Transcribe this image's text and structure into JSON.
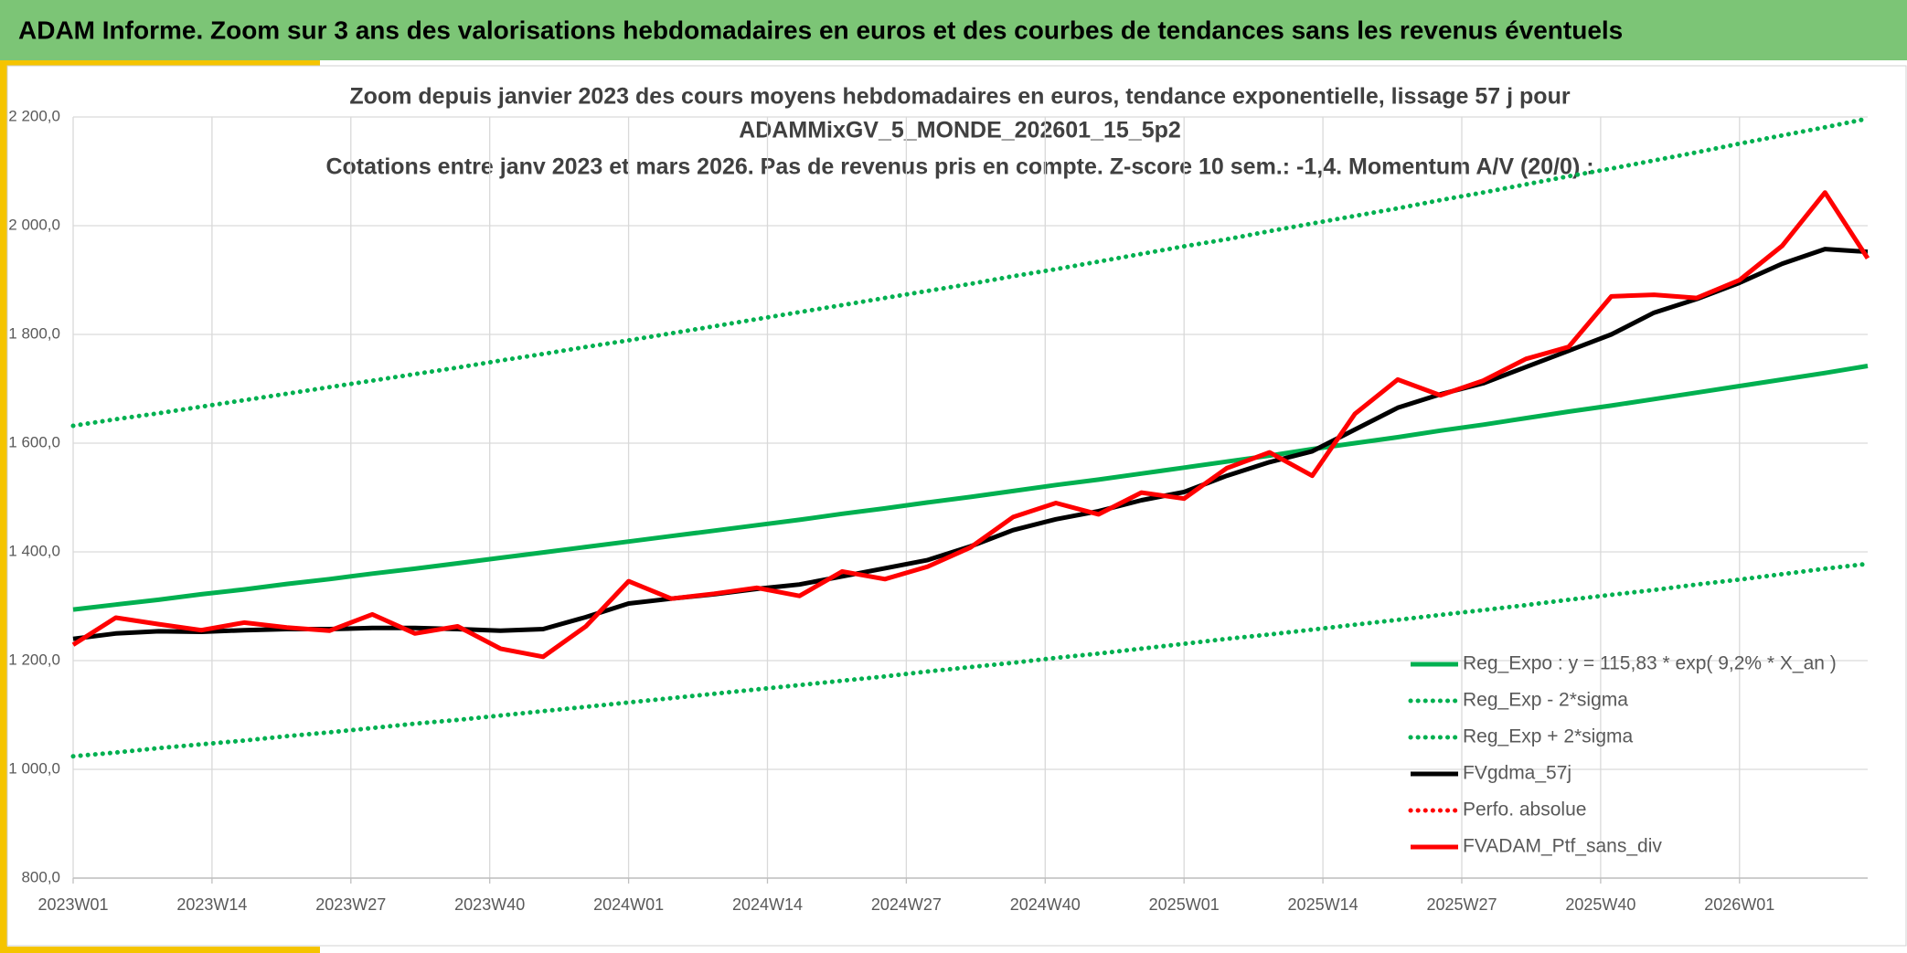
{
  "header": {
    "title": "ADAM Informe. Zoom sur 3 ans des valorisations hebdomadaires en euros et des courbes de tendances sans les revenus éventuels"
  },
  "chart_data": {
    "type": "line",
    "title": [
      "Zoom depuis janvier 2023 des cours moyens hebdomadaires en euros, tendance exponentielle, lissage 57 j pour",
      "ADAMMixGV_5_MONDE_202601_15_5p2"
    ],
    "subtitle": "Cotations entre janv 2023 et mars 2026. Pas de revenus pris en compte. Z-score 10 sem.: -1,4. Momentum A/V (20/0) :",
    "x": [
      0,
      4,
      8,
      12,
      16,
      20,
      24,
      28,
      32,
      36,
      40,
      44,
      48,
      52,
      56,
      60,
      64,
      68,
      72,
      76,
      80,
      84,
      88,
      92,
      96,
      100,
      104,
      108,
      112,
      116,
      120,
      124,
      128,
      132,
      136,
      140,
      144,
      148,
      152,
      156,
      160,
      164,
      168
    ],
    "xlim": [
      0,
      168
    ],
    "xticks": [
      {
        "value": 0,
        "label": "2023W01"
      },
      {
        "value": 13,
        "label": "2023W14"
      },
      {
        "value": 26,
        "label": "2023W27"
      },
      {
        "value": 39,
        "label": "2023W40"
      },
      {
        "value": 52,
        "label": "2024W01"
      },
      {
        "value": 65,
        "label": "2024W14"
      },
      {
        "value": 78,
        "label": "2024W27"
      },
      {
        "value": 91,
        "label": "2024W40"
      },
      {
        "value": 104,
        "label": "2025W01"
      },
      {
        "value": 117,
        "label": "2025W14"
      },
      {
        "value": 130,
        "label": "2025W27"
      },
      {
        "value": 143,
        "label": "2025W40"
      },
      {
        "value": 156,
        "label": "2026W01"
      }
    ],
    "ylim": [
      800,
      2200
    ],
    "yticks": [
      {
        "value": 800,
        "label": "800,0"
      },
      {
        "value": 1000,
        "label": "1 000,0"
      },
      {
        "value": 1200,
        "label": "1 200,0"
      },
      {
        "value": 1400,
        "label": "1 400,0"
      },
      {
        "value": 1600,
        "label": "1 600,0"
      },
      {
        "value": 1800,
        "label": "1 800,0"
      },
      {
        "value": 2000,
        "label": "2 000,0"
      },
      {
        "value": 2200,
        "label": "2 200,0"
      }
    ],
    "grid": true,
    "legend": "lower right",
    "series": [
      {
        "name": "Reg_Expo : y = 115,83 * exp( 9,2% *  X_an )",
        "color": "#00b050",
        "dash": "solid",
        "values": [
          1294,
          1303,
          1312,
          1322,
          1331,
          1341,
          1350,
          1360,
          1369,
          1379,
          1389,
          1399,
          1409,
          1419,
          1429,
          1439,
          1449,
          1459,
          1470,
          1480,
          1491,
          1501,
          1512,
          1523,
          1533,
          1544,
          1555,
          1566,
          1577,
          1589,
          1600,
          1611,
          1623,
          1634,
          1646,
          1658,
          1669,
          1681,
          1693,
          1705,
          1717,
          1729,
          1742
        ]
      },
      {
        "name": "Reg_Exp - 2*sigma",
        "color": "#00b050",
        "dash": "dotted",
        "values": [
          1024,
          1031,
          1039,
          1046,
          1053,
          1061,
          1068,
          1076,
          1084,
          1091,
          1099,
          1107,
          1115,
          1123,
          1131,
          1139,
          1147,
          1155,
          1163,
          1171,
          1180,
          1188,
          1196,
          1205,
          1213,
          1222,
          1231,
          1240,
          1248,
          1257,
          1266,
          1275,
          1284,
          1293,
          1302,
          1312,
          1321,
          1330,
          1340,
          1349,
          1359,
          1369,
          1378
        ]
      },
      {
        "name": "Reg_Exp + 2*sigma",
        "color": "#00b050",
        "dash": "dotted",
        "values": [
          1632,
          1644,
          1655,
          1667,
          1679,
          1691,
          1703,
          1715,
          1727,
          1739,
          1752,
          1764,
          1777,
          1789,
          1802,
          1815,
          1828,
          1841,
          1854,
          1867,
          1880,
          1893,
          1907,
          1920,
          1934,
          1948,
          1962,
          1975,
          1990,
          2004,
          2018,
          2032,
          2047,
          2061,
          2076,
          2091,
          2105,
          2120,
          2135,
          2151,
          2166,
          2181,
          2197
        ]
      },
      {
        "name": "FVgdma_57j",
        "color": "#000000",
        "dash": "solid",
        "values": [
          1240,
          1250,
          1254,
          1253,
          1256,
          1258,
          1258,
          1260,
          1260,
          1258,
          1255,
          1258,
          1280,
          1305,
          1314,
          1322,
          1332,
          1340,
          1355,
          1370,
          1385,
          1410,
          1440,
          1460,
          1475,
          1495,
          1510,
          1540,
          1565,
          1585,
          1625,
          1665,
          1690,
          1710,
          1740,
          1770,
          1800,
          1840,
          1865,
          1895,
          1930,
          1957,
          1952
        ]
      },
      {
        "name": "Perfo. absolue",
        "color": "#ff0000",
        "dash": "dotted",
        "values": [
          null,
          null,
          null,
          null,
          null,
          null,
          null,
          null,
          null,
          null,
          null,
          null,
          null,
          null,
          null,
          null,
          null,
          null,
          null,
          null,
          null,
          null,
          null,
          null,
          null,
          null,
          null,
          null,
          null,
          null,
          null,
          null,
          null,
          null,
          null,
          null,
          null,
          null,
          null,
          null,
          null,
          null,
          null
        ]
      },
      {
        "name": "FVADAM_Ptf_sans_div",
        "color": "#ff0000",
        "dash": "solid",
        "values": [
          1229,
          1279,
          1267,
          1256,
          1270,
          1261,
          1255,
          1285,
          1250,
          1263,
          1222,
          1207,
          1263,
          1346,
          1314,
          1323,
          1334,
          1319,
          1364,
          1350,
          1373,
          1408,
          1464,
          1490,
          1469,
          1509,
          1498,
          1554,
          1583,
          1540,
          1654,
          1717,
          1688,
          1715,
          1755,
          1777,
          1870,
          1873,
          1867,
          1900,
          1963,
          2061,
          1940
        ]
      }
    ]
  }
}
